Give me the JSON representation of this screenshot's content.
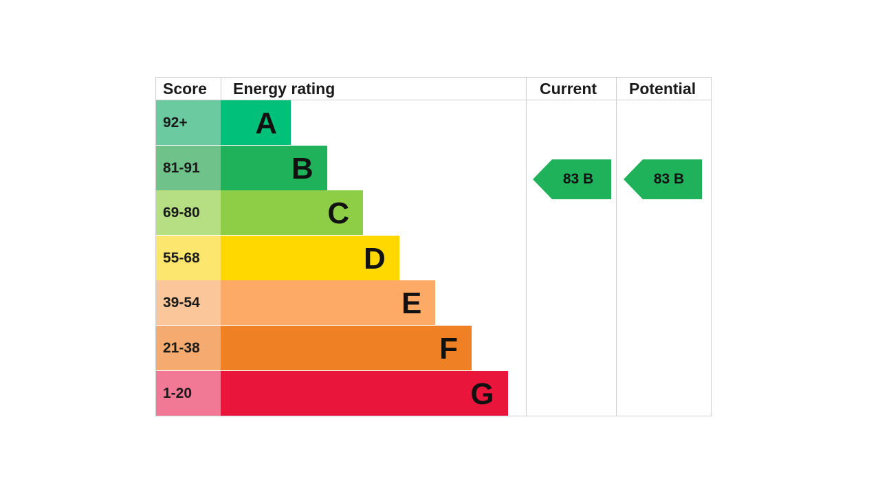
{
  "chart_data": {
    "type": "table",
    "headers": {
      "score": "Score",
      "rating": "Energy rating",
      "current": "Current",
      "potential": "Potential"
    },
    "bands": [
      {
        "score": "92+",
        "letter": "A",
        "color": "#00c07a",
        "score_color": "#6ccaa0"
      },
      {
        "score": "81-91",
        "letter": "B",
        "color": "#1fb25a",
        "score_color": "#6fc28a"
      },
      {
        "score": "69-80",
        "letter": "C",
        "color": "#8dce46",
        "score_color": "#b6df84"
      },
      {
        "score": "55-68",
        "letter": "D",
        "color": "#ffd800",
        "score_color": "#fde66e"
      },
      {
        "score": "39-54",
        "letter": "E",
        "color": "#fcaa65",
        "score_color": "#fcc69b"
      },
      {
        "score": "21-38",
        "letter": "F",
        "color": "#ef8023",
        "score_color": "#f5ab6f"
      },
      {
        "score": "1-20",
        "letter": "G",
        "color": "#e9153b",
        "score_color": "#f17995"
      }
    ],
    "current": {
      "value": 83,
      "band": "B",
      "label": "83 B",
      "color": "#1fb25a"
    },
    "potential": {
      "value": 83,
      "band": "B",
      "label": "83 B",
      "color": "#1fb25a"
    }
  }
}
